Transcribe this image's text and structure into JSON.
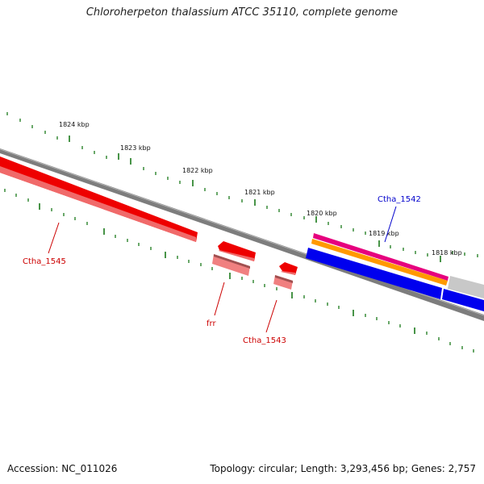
{
  "title": "Chloroherpeton thalassium ATCC 35110, complete genome",
  "footer": {
    "accession": "Accession: NC_011026",
    "topology": "Topology: circular; Length: 3,293,456 bp; Genes: 2,757"
  },
  "scale_labels": [
    "1824 kbp",
    "1823 kbp",
    "1822 kbp",
    "1821 kbp",
    "1820 kbp",
    "1819 kbp",
    "1818 kbp"
  ],
  "gene_labels": {
    "ctha_1545": "Ctha_1545",
    "frr": "frr",
    "ctha_1543": "Ctha_1543",
    "ctha_1542": "Ctha_1542"
  },
  "colors": {
    "backbone": "#808080",
    "ticks": "#1a7a1a",
    "gene_red": "#ee0000",
    "gene_pink": "#f08080",
    "gene_magenta": "#e6007e",
    "gene_orange": "#ff9900",
    "gene_blue": "#0000ee",
    "gene_gray": "#c8c8c8",
    "label_red": "#cc0000",
    "label_blue": "#0000cc"
  }
}
